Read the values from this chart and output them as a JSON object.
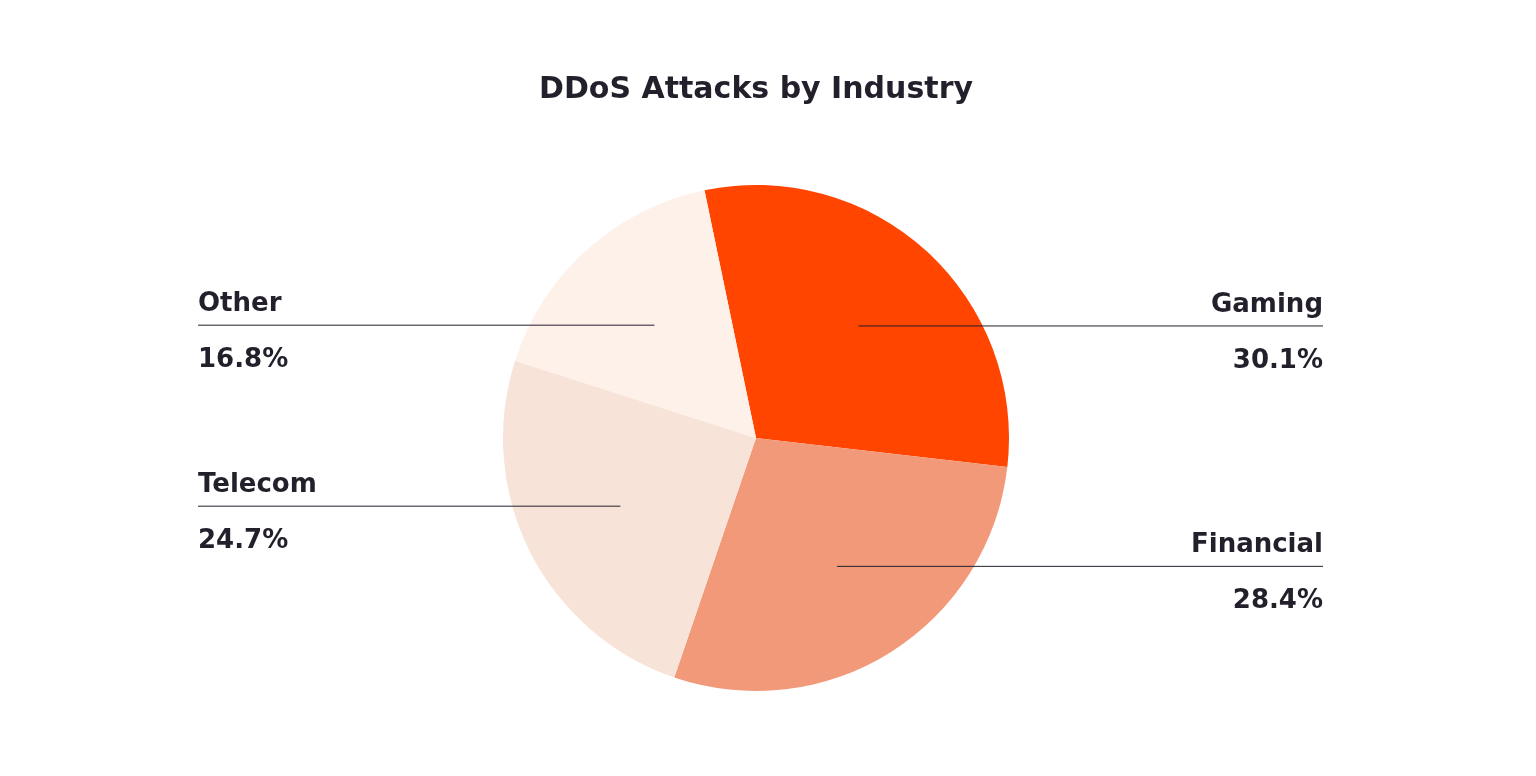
{
  "chart_data": {
    "type": "pie",
    "title": "DDoS Attacks by Industry",
    "categories": [
      "Gaming",
      "Financial",
      "Telecom",
      "Other"
    ],
    "values": [
      30.1,
      28.4,
      24.7,
      16.8
    ],
    "value_labels": [
      "30.1%",
      "28.4%",
      "24.7%",
      "16.8%"
    ],
    "colors": [
      "#ff4500",
      "#f2997a",
      "#f7e3d7",
      "#fef1ea"
    ],
    "legend": false
  }
}
